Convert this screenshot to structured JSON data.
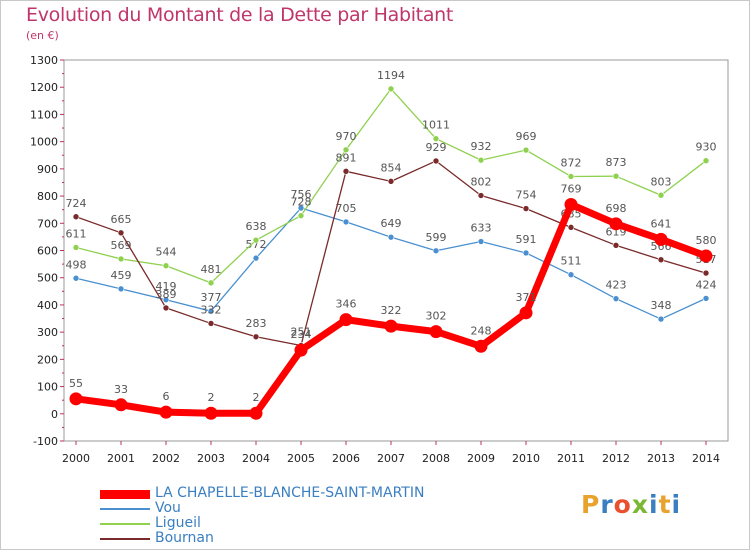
{
  "header": {
    "title": "Evolution du Montant de la Dette par Habitant",
    "subtitle": "(en €)"
  },
  "logo": {
    "text": "Proxiti",
    "colors": [
      "#e8a32e",
      "#3a7fc1",
      "#e8502e",
      "#7ab833",
      "#3a7fc1",
      "#e8a32e",
      "#3a7fc1"
    ]
  },
  "chart_data": {
    "type": "line",
    "x": [
      "2000",
      "2001",
      "2002",
      "2003",
      "2004",
      "2005",
      "2006",
      "2007",
      "2008",
      "2009",
      "2010",
      "2011",
      "2012",
      "2013",
      "2014"
    ],
    "ylim": [
      -100,
      1300
    ],
    "yticks": [
      -100,
      0,
      100,
      200,
      300,
      400,
      500,
      600,
      700,
      800,
      900,
      1000,
      1100,
      1200,
      1300
    ],
    "grid": false,
    "series": [
      {
        "name": "Vou",
        "color": "#4a90d0",
        "values": [
          498,
          459,
          419,
          377,
          572,
          756,
          705,
          649,
          599,
          633,
          591,
          511,
          423,
          348,
          424
        ],
        "labels": [
          "498",
          "459",
          "419",
          "377",
          "572",
          "756",
          "705",
          "649",
          "599",
          "633",
          "591",
          "511",
          "423",
          "348",
          "424"
        ]
      },
      {
        "name": "Ligueil",
        "color": "#8fd14f",
        "values": [
          611,
          569,
          544,
          481,
          638,
          728,
          970,
          1194,
          1011,
          932,
          969,
          872,
          873,
          803,
          930
        ],
        "labels": [
          "611",
          "569",
          "544",
          "481",
          "638",
          "728",
          "970",
          "1194",
          "1011",
          "932",
          "969",
          "872",
          "873",
          "803",
          "930"
        ]
      },
      {
        "name": "Bournan",
        "color": "#7a2a2a",
        "values": [
          724,
          665,
          389,
          332,
          283,
          251,
          891,
          854,
          929,
          802,
          754,
          685,
          619,
          566,
          517
        ],
        "labels": [
          "724",
          "665",
          "389",
          "332",
          "283",
          "251",
          "891",
          "854",
          "929",
          "802",
          "754",
          "685",
          "619",
          "566",
          "517"
        ]
      },
      {
        "name": "LA CHAPELLE-BLANCHE-SAINT-MARTIN",
        "color": "#ff0000",
        "values": [
          55,
          33,
          6,
          2,
          2,
          234,
          346,
          322,
          302,
          248,
          371,
          769,
          698,
          641,
          580
        ],
        "labels": [
          "55",
          "33",
          "6",
          "2",
          "2",
          "234",
          "346",
          "322",
          "302",
          "248",
          "371",
          "769",
          "698",
          "641",
          "580"
        ]
      }
    ],
    "legend_order": [
      3,
      0,
      1,
      2
    ],
    "legend_position": "bottom-left"
  }
}
